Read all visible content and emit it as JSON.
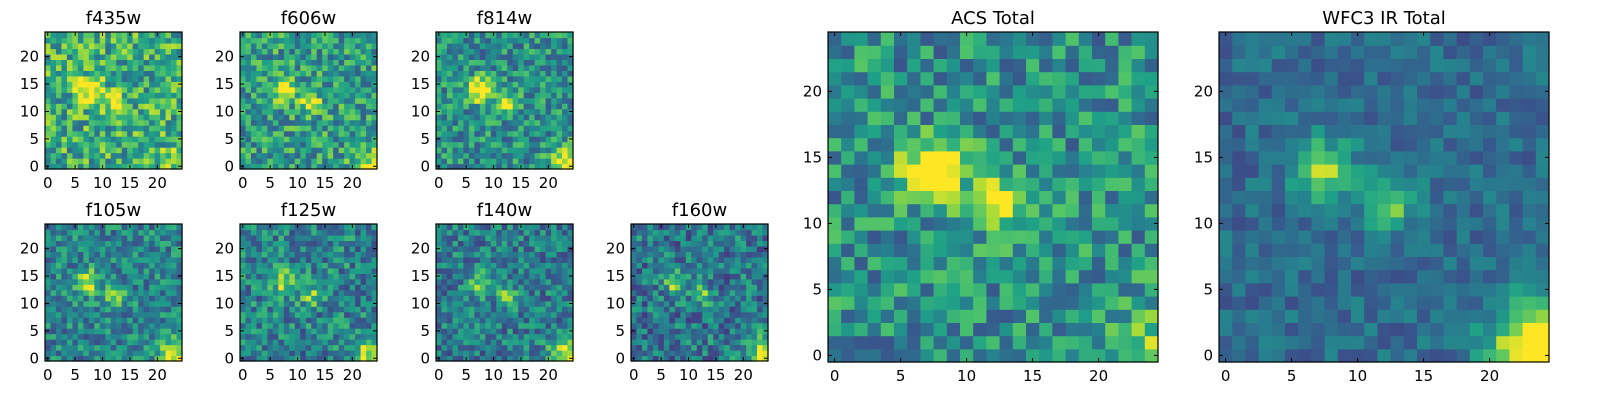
{
  "chart_data": {
    "type": "heatmap",
    "colormap": "viridis",
    "colormap_stops": [
      "#440154",
      "#46327e",
      "#365c8d",
      "#277f8e",
      "#1fa187",
      "#4ac16d",
      "#a0da39",
      "#fde725"
    ],
    "grid_size": 25,
    "sources": [
      {
        "x": 7.5,
        "y": 14,
        "sigma": 1.6,
        "amp": 1.0
      },
      {
        "x": 12.5,
        "y": 11.5,
        "sigma": 1.3,
        "amp": 0.85
      }
    ],
    "panels": [
      {
        "title": "f435w",
        "xticks": [
          "0",
          "5",
          "10",
          "15",
          "20"
        ],
        "yticks": [
          "0",
          "5",
          "10",
          "15",
          "20"
        ],
        "background": 0.62,
        "noise": 0.28,
        "source_gain": 0.55,
        "corner_gain": 0.25,
        "seed": 11
      },
      {
        "title": "f606w",
        "xticks": [
          "0",
          "5",
          "10",
          "15",
          "20"
        ],
        "yticks": [
          "0",
          "5",
          "10",
          "15",
          "20"
        ],
        "background": 0.55,
        "noise": 0.26,
        "source_gain": 0.55,
        "corner_gain": 0.35,
        "seed": 23
      },
      {
        "title": "f814w",
        "xticks": [
          "0",
          "5",
          "10",
          "15",
          "20"
        ],
        "yticks": [
          "0",
          "5",
          "10",
          "15",
          "20"
        ],
        "background": 0.5,
        "noise": 0.24,
        "source_gain": 0.6,
        "corner_gain": 0.5,
        "seed": 37
      },
      {
        "title": "f105w",
        "xticks": [
          "0",
          "5",
          "10",
          "15",
          "20"
        ],
        "yticks": [
          "0",
          "5",
          "10",
          "15",
          "20"
        ],
        "background": 0.45,
        "noise": 0.22,
        "source_gain": 0.45,
        "corner_gain": 0.55,
        "seed": 41
      },
      {
        "title": "f125w",
        "xticks": [
          "0",
          "5",
          "10",
          "15",
          "20"
        ],
        "yticks": [
          "0",
          "5",
          "10",
          "15",
          "20"
        ],
        "background": 0.45,
        "noise": 0.24,
        "source_gain": 0.4,
        "corner_gain": 0.55,
        "seed": 53
      },
      {
        "title": "f140w",
        "xticks": [
          "0",
          "5",
          "10",
          "15",
          "20"
        ],
        "yticks": [
          "0",
          "5",
          "10",
          "15",
          "20"
        ],
        "background": 0.42,
        "noise": 0.22,
        "source_gain": 0.4,
        "corner_gain": 0.6,
        "seed": 67
      },
      {
        "title": "f160w",
        "xticks": [
          "0",
          "5",
          "10",
          "15",
          "20"
        ],
        "yticks": [
          "0",
          "5",
          "10",
          "15",
          "20"
        ],
        "background": 0.4,
        "noise": 0.24,
        "source_gain": 0.4,
        "corner_gain": 0.6,
        "seed": 79
      },
      {
        "title": "ACS Total",
        "xticks": [
          "0",
          "5",
          "10",
          "15",
          "20"
        ],
        "yticks": [
          "0",
          "5",
          "10",
          "15",
          "20"
        ],
        "background": 0.5,
        "noise": 0.24,
        "source_gain": 0.75,
        "corner_gain": 0.3,
        "seed": 97
      },
      {
        "title": "WFC3 IR Total",
        "xticks": [
          "0",
          "5",
          "10",
          "15",
          "20"
        ],
        "yticks": [
          "0",
          "5",
          "10",
          "15",
          "20"
        ],
        "background": 0.35,
        "noise": 0.12,
        "source_gain": 0.5,
        "corner_gain": 0.95,
        "seed": 113
      }
    ]
  }
}
